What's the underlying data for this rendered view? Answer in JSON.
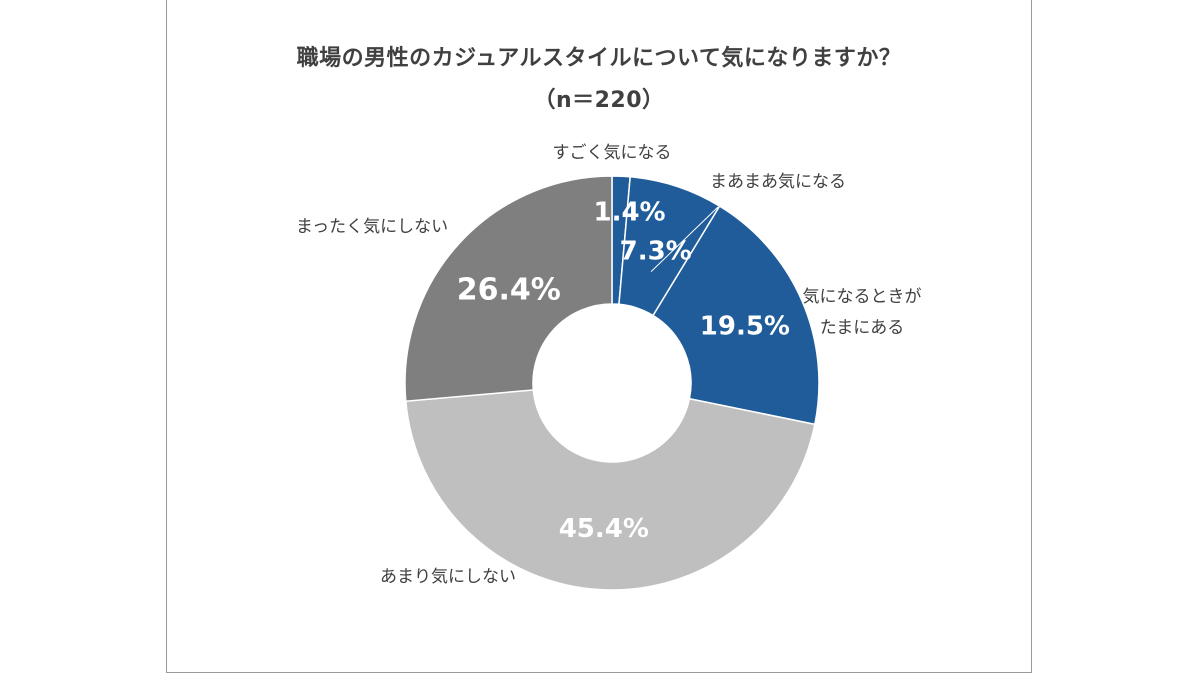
{
  "chart_data": {
    "type": "pie",
    "donut": true,
    "title": "職場の男性のカジュアルスタイルについて気になりますか？",
    "subtitle": "（n＝220）",
    "slices": [
      {
        "category": "すごく気になる",
        "value": 1.4,
        "label": "1.4%",
        "color": "#1f5c99"
      },
      {
        "category": "まあまあ気になる",
        "value": 7.3,
        "label": "7.3%",
        "color": "#1f5c99"
      },
      {
        "category": "気になるときが\nたまにある",
        "value": 19.5,
        "label": "19.5%",
        "color": "#1f5c99"
      },
      {
        "category": "あまり気にしない",
        "value": 45.4,
        "label": "45.4%",
        "color": "#bfbfbf"
      },
      {
        "category": "まったく気にしない",
        "value": 26.4,
        "label": "26.4%",
        "color": "#7f7f7f"
      }
    ],
    "start_angle": "12 o'clock",
    "direction": "clockwise",
    "legend": "none"
  }
}
